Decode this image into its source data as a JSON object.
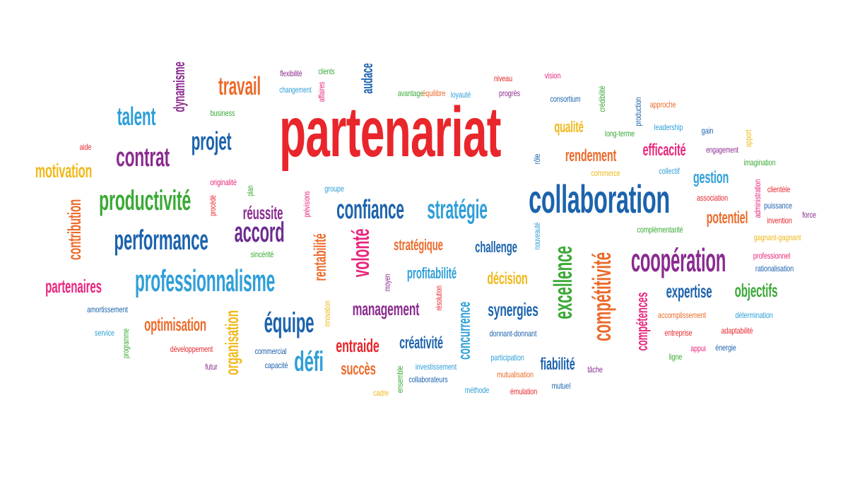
{
  "cloud": {
    "words": [
      {
        "text": "partenariat",
        "color": "#e8262b",
        "vertical": false,
        "weight": "bold"
      },
      {
        "text": "collaboration",
        "color": "#1c63ad",
        "vertical": false,
        "weight": "bold"
      },
      {
        "text": "professionnalisme",
        "color": "#2f9fd8",
        "vertical": false,
        "weight": "bold"
      },
      {
        "text": "performance",
        "color": "#1c63ad",
        "vertical": false,
        "weight": "bold"
      },
      {
        "text": "productivité",
        "color": "#3aa935",
        "vertical": false,
        "weight": "bold"
      },
      {
        "text": "accord",
        "color": "#6c2b8f",
        "vertical": false,
        "weight": "bold"
      },
      {
        "text": "confiance",
        "color": "#1c63ad",
        "vertical": false,
        "weight": "bold"
      },
      {
        "text": "stratégie",
        "color": "#2f9fd8",
        "vertical": false,
        "weight": "bold"
      },
      {
        "text": "coopération",
        "color": "#8a2b8f",
        "vertical": false,
        "weight": "bold"
      },
      {
        "text": "excellence",
        "color": "#3aa935",
        "vertical": true,
        "weight": "bold"
      },
      {
        "text": "compétitivité",
        "color": "#ec6b2b",
        "vertical": true,
        "weight": "bold"
      },
      {
        "text": "volonté",
        "color": "#e8267d",
        "vertical": true,
        "weight": "bold"
      },
      {
        "text": "équipe",
        "color": "#1c63ad",
        "vertical": false,
        "weight": "bold"
      },
      {
        "text": "défi",
        "color": "#2f9fd8",
        "vertical": false,
        "weight": "bold"
      },
      {
        "text": "contrat",
        "color": "#8a2b8f",
        "vertical": false,
        "weight": "bold"
      },
      {
        "text": "projet",
        "color": "#1c63ad",
        "vertical": false,
        "weight": "bold"
      },
      {
        "text": "talent",
        "color": "#2f9fd8",
        "vertical": false,
        "weight": "bold"
      },
      {
        "text": "travail",
        "color": "#ec6b2b",
        "vertical": false,
        "weight": "bold"
      },
      {
        "text": "dynamisme",
        "color": "#8a2b8f",
        "vertical": true,
        "weight": "bold"
      },
      {
        "text": "motivation",
        "color": "#f0b819",
        "vertical": false,
        "weight": "bold"
      },
      {
        "text": "contribution",
        "color": "#ec6b2b",
        "vertical": true,
        "weight": "bold"
      },
      {
        "text": "partenaires",
        "color": "#e8267d",
        "vertical": false,
        "weight": "bold"
      },
      {
        "text": "optimisation",
        "color": "#ec6b2b",
        "vertical": false,
        "weight": "bold"
      },
      {
        "text": "organisation",
        "color": "#f0b819",
        "vertical": true,
        "weight": "bold"
      },
      {
        "text": "rentabilité",
        "color": "#ec6b2b",
        "vertical": true,
        "weight": "bold"
      },
      {
        "text": "réussite",
        "color": "#8a2b8f",
        "vertical": false,
        "weight": "bold"
      },
      {
        "text": "management",
        "color": "#8a2b8f",
        "vertical": false,
        "weight": "bold"
      },
      {
        "text": "entraide",
        "color": "#e8262b",
        "vertical": false,
        "weight": "bold"
      },
      {
        "text": "succès",
        "color": "#ec6b2b",
        "vertical": false,
        "weight": "bold"
      },
      {
        "text": "créativité",
        "color": "#1c63ad",
        "vertical": false,
        "weight": "bold"
      },
      {
        "text": "concurrence",
        "color": "#2f9fd8",
        "vertical": true,
        "weight": "bold"
      },
      {
        "text": "synergies",
        "color": "#1c63ad",
        "vertical": false,
        "weight": "bold"
      },
      {
        "text": "décision",
        "color": "#f0b819",
        "vertical": false,
        "weight": "bold"
      },
      {
        "text": "profitabilité",
        "color": "#2f9fd8",
        "vertical": false,
        "weight": "bold"
      },
      {
        "text": "stratégique",
        "color": "#ec6b2b",
        "vertical": false,
        "weight": "bold"
      },
      {
        "text": "challenge",
        "color": "#1c63ad",
        "vertical": false,
        "weight": "bold"
      },
      {
        "text": "fiabilité",
        "color": "#1c63ad",
        "vertical": false,
        "weight": "bold"
      },
      {
        "text": "compétences",
        "color": "#e8267d",
        "vertical": true,
        "weight": "bold"
      },
      {
        "text": "expertise",
        "color": "#1c63ad",
        "vertical": false,
        "weight": "bold"
      },
      {
        "text": "objectifs",
        "color": "#3aa935",
        "vertical": false,
        "weight": "bold"
      },
      {
        "text": "potentiel",
        "color": "#ec6b2b",
        "vertical": false,
        "weight": "bold"
      },
      {
        "text": "gestion",
        "color": "#2f9fd8",
        "vertical": false,
        "weight": "bold"
      },
      {
        "text": "rendement",
        "color": "#ec6b2b",
        "vertical": false,
        "weight": "bold"
      },
      {
        "text": "efficacité",
        "color": "#e8267d",
        "vertical": false,
        "weight": "bold"
      },
      {
        "text": "qualité",
        "color": "#f0b819",
        "vertical": false,
        "weight": "bold"
      },
      {
        "text": "audace",
        "color": "#1c63ad",
        "vertical": true,
        "weight": "bold"
      },
      {
        "text": "aide",
        "color": "#e8262b",
        "vertical": false,
        "weight": "normal"
      },
      {
        "text": "business",
        "color": "#3aa935",
        "vertical": false,
        "weight": "normal"
      },
      {
        "text": "flexibilité",
        "color": "#8a2b8f",
        "vertical": false,
        "weight": "normal"
      },
      {
        "text": "clients",
        "color": "#3aa935",
        "vertical": false,
        "weight": "normal"
      },
      {
        "text": "changement",
        "color": "#2f9fd8",
        "vertical": false,
        "weight": "normal"
      },
      {
        "text": "affaires",
        "color": "#e8267d",
        "vertical": true,
        "weight": "normal"
      },
      {
        "text": "avantage",
        "color": "#3aa935",
        "vertical": false,
        "weight": "normal"
      },
      {
        "text": "équilibre",
        "color": "#ec6b2b",
        "vertical": false,
        "weight": "normal"
      },
      {
        "text": "loyauté",
        "color": "#2f9fd8",
        "vertical": false,
        "weight": "normal"
      },
      {
        "text": "niveau",
        "color": "#e8262b",
        "vertical": false,
        "weight": "normal"
      },
      {
        "text": "progrès",
        "color": "#8a2b8f",
        "vertical": false,
        "weight": "normal"
      },
      {
        "text": "vision",
        "color": "#e8267d",
        "vertical": false,
        "weight": "normal"
      },
      {
        "text": "consortium",
        "color": "#1c63ad",
        "vertical": false,
        "weight": "normal"
      },
      {
        "text": "crédibilité",
        "color": "#3aa935",
        "vertical": true,
        "weight": "normal"
      },
      {
        "text": "production",
        "color": "#1c63ad",
        "vertical": true,
        "weight": "normal"
      },
      {
        "text": "approche",
        "color": "#ec6b2b",
        "vertical": false,
        "weight": "normal"
      },
      {
        "text": "leadership",
        "color": "#2f9fd8",
        "vertical": false,
        "weight": "normal"
      },
      {
        "text": "gain",
        "color": "#1c63ad",
        "vertical": false,
        "weight": "normal"
      },
      {
        "text": "long-terme",
        "color": "#3aa935",
        "vertical": false,
        "weight": "normal"
      },
      {
        "text": "engagement",
        "color": "#8a2b8f",
        "vertical": false,
        "weight": "normal"
      },
      {
        "text": "apport",
        "color": "#f0b819",
        "vertical": true,
        "weight": "normal"
      },
      {
        "text": "imagination",
        "color": "#3aa935",
        "vertical": false,
        "weight": "normal"
      },
      {
        "text": "rôle",
        "color": "#1c63ad",
        "vertical": true,
        "weight": "normal"
      },
      {
        "text": "commerce",
        "color": "#f0b819",
        "vertical": false,
        "weight": "normal"
      },
      {
        "text": "collectif",
        "color": "#2f9fd8",
        "vertical": false,
        "weight": "normal"
      },
      {
        "text": "association",
        "color": "#e8262b",
        "vertical": false,
        "weight": "normal"
      },
      {
        "text": "clientèle",
        "color": "#e8262b",
        "vertical": false,
        "weight": "normal"
      },
      {
        "text": "administration",
        "color": "#e8267d",
        "vertical": true,
        "weight": "normal"
      },
      {
        "text": "puissance",
        "color": "#1c63ad",
        "vertical": false,
        "weight": "normal"
      },
      {
        "text": "invention",
        "color": "#e8262b",
        "vertical": false,
        "weight": "normal"
      },
      {
        "text": "force",
        "color": "#8a2b8f",
        "vertical": false,
        "weight": "normal"
      },
      {
        "text": "complémentarité",
        "color": "#3aa935",
        "vertical": false,
        "weight": "normal"
      },
      {
        "text": "gagnant-gagnant",
        "color": "#f0b819",
        "vertical": false,
        "weight": "normal"
      },
      {
        "text": "professionnel",
        "color": "#e8267d",
        "vertical": false,
        "weight": "normal"
      },
      {
        "text": "rationalisation",
        "color": "#1c63ad",
        "vertical": false,
        "weight": "normal"
      },
      {
        "text": "accomplissement",
        "color": "#ec6b2b",
        "vertical": false,
        "weight": "normal"
      },
      {
        "text": "détermination",
        "color": "#2f9fd8",
        "vertical": false,
        "weight": "normal"
      },
      {
        "text": "entreprise",
        "color": "#e8262b",
        "vertical": false,
        "weight": "normal"
      },
      {
        "text": "adaptabilité",
        "color": "#e8262b",
        "vertical": false,
        "weight": "normal"
      },
      {
        "text": "ligne",
        "color": "#3aa935",
        "vertical": false,
        "weight": "normal"
      },
      {
        "text": "appui",
        "color": "#e8267d",
        "vertical": false,
        "weight": "normal"
      },
      {
        "text": "énergie",
        "color": "#1c63ad",
        "vertical": false,
        "weight": "normal"
      },
      {
        "text": "tâche",
        "color": "#8a2b8f",
        "vertical": false,
        "weight": "normal"
      },
      {
        "text": "mutuel",
        "color": "#1c63ad",
        "vertical": false,
        "weight": "normal"
      },
      {
        "text": "émulation",
        "color": "#e8262b",
        "vertical": false,
        "weight": "normal"
      },
      {
        "text": "mutualisation",
        "color": "#ec6b2b",
        "vertical": false,
        "weight": "normal"
      },
      {
        "text": "participation",
        "color": "#2f9fd8",
        "vertical": false,
        "weight": "normal"
      },
      {
        "text": "méthode",
        "color": "#2f9fd8",
        "vertical": false,
        "weight": "normal"
      },
      {
        "text": "donnant-donnant",
        "color": "#1c63ad",
        "vertical": false,
        "weight": "normal"
      },
      {
        "text": "collaborateurs",
        "color": "#1c63ad",
        "vertical": false,
        "weight": "normal"
      },
      {
        "text": "investissement",
        "color": "#2f9fd8",
        "vertical": false,
        "weight": "normal"
      },
      {
        "text": "ensemble",
        "color": "#3aa935",
        "vertical": true,
        "weight": "normal"
      },
      {
        "text": "cadre",
        "color": "#f0b819",
        "vertical": false,
        "weight": "normal"
      },
      {
        "text": "résolution",
        "color": "#e8262b",
        "vertical": true,
        "weight": "normal"
      },
      {
        "text": "innovation",
        "color": "#f0b819",
        "vertical": true,
        "weight": "normal"
      },
      {
        "text": "moyen",
        "color": "#8a2b8f",
        "vertical": true,
        "weight": "normal"
      },
      {
        "text": "nouveauté",
        "color": "#2f9fd8",
        "vertical": true,
        "weight": "normal"
      },
      {
        "text": "capacité",
        "color": "#1c63ad",
        "vertical": false,
        "weight": "normal"
      },
      {
        "text": "commercial",
        "color": "#1c63ad",
        "vertical": false,
        "weight": "normal"
      },
      {
        "text": "futur",
        "color": "#8a2b8f",
        "vertical": false,
        "weight": "normal"
      },
      {
        "text": "développement",
        "color": "#e8262b",
        "vertical": false,
        "weight": "normal"
      },
      {
        "text": "programme",
        "color": "#3aa935",
        "vertical": true,
        "weight": "normal"
      },
      {
        "text": "service",
        "color": "#2f9fd8",
        "vertical": false,
        "weight": "normal"
      },
      {
        "text": "amortissement",
        "color": "#1c63ad",
        "vertical": false,
        "weight": "normal"
      },
      {
        "text": "sincérité",
        "color": "#3aa935",
        "vertical": false,
        "weight": "normal"
      },
      {
        "text": "originalité",
        "color": "#e8267d",
        "vertical": false,
        "weight": "normal"
      },
      {
        "text": "procédé",
        "color": "#e8262b",
        "vertical": true,
        "weight": "normal"
      },
      {
        "text": "plan",
        "color": "#3aa935",
        "vertical": true,
        "weight": "normal"
      },
      {
        "text": "prévisions",
        "color": "#e8267d",
        "vertical": true,
        "weight": "normal"
      },
      {
        "text": "groupe",
        "color": "#2f9fd8",
        "vertical": false,
        "weight": "normal"
      }
    ]
  }
}
